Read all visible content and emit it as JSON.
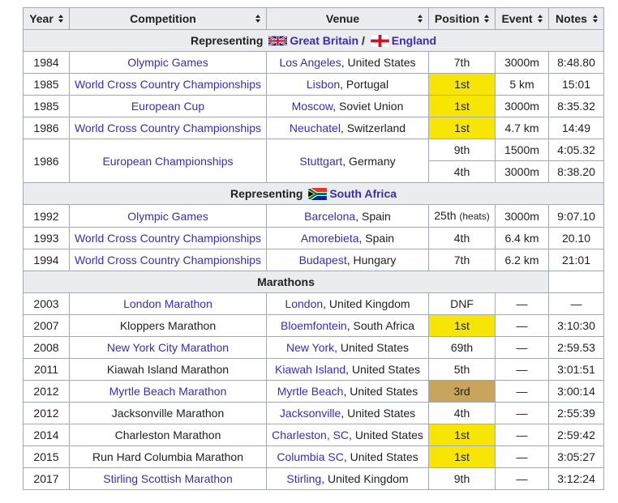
{
  "headers": [
    "Year",
    "Competition",
    "Venue",
    "Position",
    "Event",
    "Notes"
  ],
  "sections": {
    "gb": {
      "prefix": "Representing",
      "country1": "Great Britain",
      "sep": "/",
      "country2": "England"
    },
    "sa": {
      "prefix": "Representing",
      "country": "South Africa"
    },
    "marathons": {
      "label": "Marathons"
    }
  },
  "rows": [
    {
      "year": "1984",
      "competition": "Olympic Games",
      "venue_city": "Los Angeles",
      "venue_rest": ", United States",
      "position": "7th",
      "event": "3000m",
      "notes": "8:48.80"
    },
    {
      "year": "1985",
      "competition": "World Cross Country Championships",
      "venue_city": "Lisbon",
      "venue_rest": ", Portugal",
      "position": "1st",
      "event": "5 km",
      "notes": "15:01"
    },
    {
      "year": "1985",
      "competition": "European Cup",
      "venue_city": "Moscow",
      "venue_rest": ", Soviet Union",
      "position": "1st",
      "event": "3000m",
      "notes": "8:35.32"
    },
    {
      "year": "1986",
      "competition": "World Cross Country Championships",
      "venue_city": "Neuchatel",
      "venue_rest": ", Switzerland",
      "position": "1st",
      "event": "4.7 km",
      "notes": "14:49"
    },
    {
      "year": "1986",
      "competition": "European Championships",
      "venue_city": "Stuttgart",
      "venue_rest": ", Germany",
      "position": "9th",
      "event": "1500m",
      "notes": "4:05.32",
      "position2": "4th",
      "event2": "3000m",
      "notes2": "8:38.20"
    },
    {
      "year": "1992",
      "competition": "Olympic Games",
      "venue_city": "Barcelona",
      "venue_rest": ", Spain",
      "position": "25th",
      "position_note": "(heats)",
      "event": "3000m",
      "notes": "9:07.10"
    },
    {
      "year": "1993",
      "competition": "World Cross Country Championships",
      "venue_city": "Amorebieta",
      "venue_rest": ", Spain",
      "position": "4th",
      "event": "6.4 km",
      "notes": "20.10"
    },
    {
      "year": "1994",
      "competition": "World Cross Country Championships",
      "venue_city": "Budapest",
      "venue_rest": ", Hungary",
      "position": "7th",
      "event": "6.2 km",
      "notes": "21:01"
    },
    {
      "year": "2003",
      "competition": "London Marathon",
      "venue_city": "London",
      "venue_rest": ", United Kingdom",
      "position": "DNF",
      "event": "—",
      "notes": "—"
    },
    {
      "year": "2007",
      "competition": "Kloppers Marathon",
      "venue_city": "Bloemfontein",
      "venue_rest": ", South Africa",
      "position": "1st",
      "event": "—",
      "notes": "3:10:30"
    },
    {
      "year": "2008",
      "competition": "New York City Marathon",
      "venue_city": "New York",
      "venue_rest": ", United States",
      "position": "69th",
      "event": "—",
      "notes": "2:59.53"
    },
    {
      "year": "2011",
      "competition": "Kiawah Island Marathon",
      "venue_city": "Kiawah Island",
      "venue_rest": ", United States",
      "position": "5th",
      "event": "—",
      "notes": "3:01:51"
    },
    {
      "year": "2012",
      "competition": "Myrtle Beach Marathon",
      "venue_city": "Myrtle Beach",
      "venue_rest": ", United States",
      "position": "3rd",
      "event": "—",
      "notes": "3:00:14"
    },
    {
      "year": "2012",
      "competition": "Jacksonville Marathon",
      "venue_city": "Jacksonville",
      "venue_rest": ", United States",
      "position": "4th",
      "event": "—",
      "notes": "2:55:39"
    },
    {
      "year": "2014",
      "competition": "Charleston Marathon",
      "venue_city": "Charleston, SC",
      "venue_rest": ", United States",
      "position": "1st",
      "event": "—",
      "notes": "2:59:42"
    },
    {
      "year": "2015",
      "competition": "Run Hard Columbia Marathon",
      "venue_city": "Columbia SC",
      "venue_rest": ", United States",
      "position": "1st",
      "event": "—",
      "notes": "3:05:27"
    },
    {
      "year": "2017",
      "competition": "Stirling Scottish Marathon",
      "venue_city": "Stirling",
      "venue_rest": ", United Kingdom",
      "position": "9th",
      "event": "—",
      "notes": "3:12:24"
    }
  ],
  "colors": {
    "gold": "#f7e605",
    "bronze": "#c8a45c",
    "link": "#3a2dad",
    "header_bg": "#eaecf0",
    "border": "#a2a9b1"
  }
}
